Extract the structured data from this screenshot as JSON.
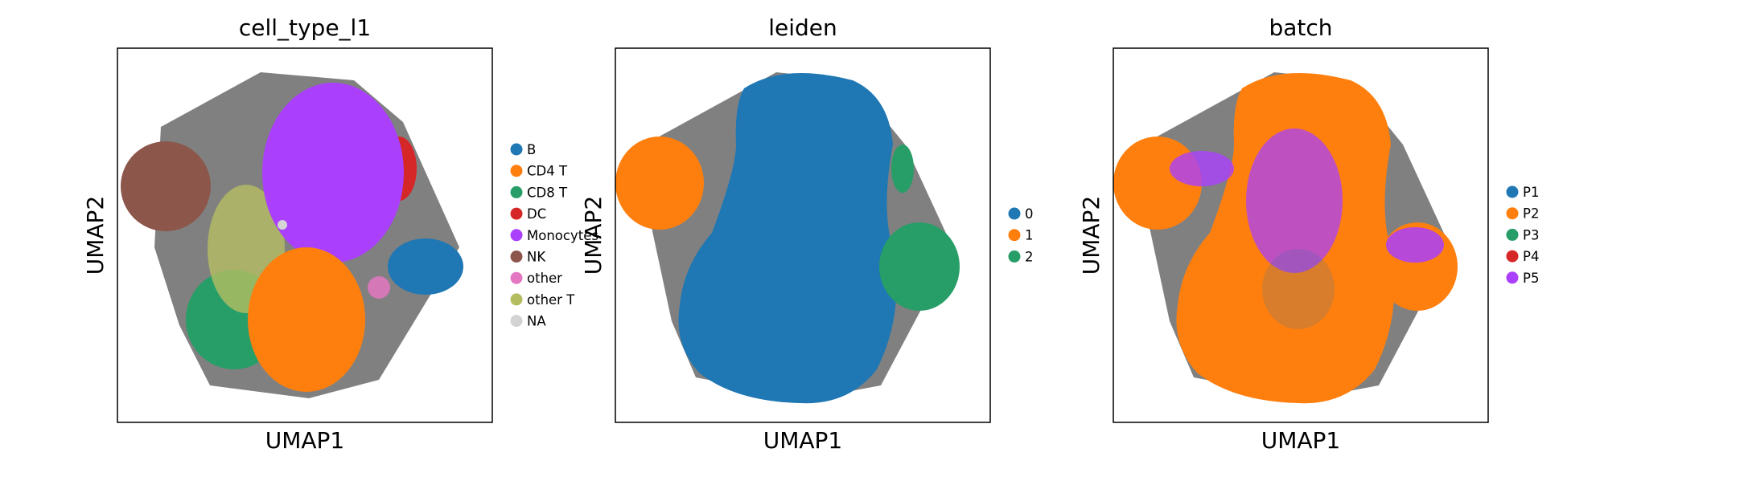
{
  "chart_data": [
    {
      "type": "scatter",
      "title": "cell_type_l1",
      "xlabel": "UMAP1",
      "ylabel": "UMAP2",
      "grid": false,
      "ticks": "none",
      "legend": "right",
      "series": [
        {
          "name": "B",
          "color": "#1f77b4"
        },
        {
          "name": "CD4 T",
          "color": "#ff7f0e"
        },
        {
          "name": "CD8 T",
          "color": "#279e68"
        },
        {
          "name": "DC",
          "color": "#d62728"
        },
        {
          "name": "Monocytes",
          "color": "#aa40fc"
        },
        {
          "name": "NK",
          "color": "#8c564b"
        },
        {
          "name": "other",
          "color": "#e377c2"
        },
        {
          "name": "other T",
          "color": "#b5bd61"
        },
        {
          "name": "NA",
          "color": "#d3d3d3"
        }
      ]
    },
    {
      "type": "scatter",
      "title": "leiden",
      "xlabel": "UMAP1",
      "ylabel": "UMAP2",
      "grid": false,
      "ticks": "none",
      "legend": "right",
      "series": [
        {
          "name": "0",
          "color": "#1f77b4"
        },
        {
          "name": "1",
          "color": "#ff7f0e"
        },
        {
          "name": "2",
          "color": "#279e68"
        }
      ]
    },
    {
      "type": "scatter",
      "title": "batch",
      "xlabel": "UMAP1",
      "ylabel": "UMAP2",
      "grid": false,
      "ticks": "none",
      "legend": "right",
      "series": [
        {
          "name": "P1",
          "color": "#1f77b4"
        },
        {
          "name": "P2",
          "color": "#ff7f0e"
        },
        {
          "name": "P3",
          "color": "#279e68"
        },
        {
          "name": "P4",
          "color": "#d62728"
        },
        {
          "name": "P5",
          "color": "#aa40fc"
        }
      ]
    }
  ]
}
